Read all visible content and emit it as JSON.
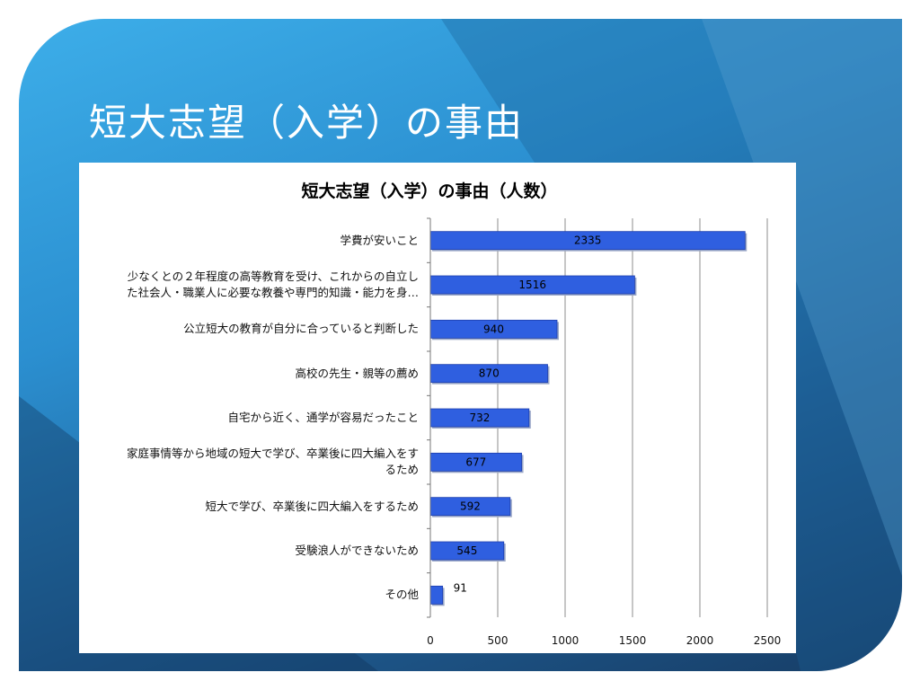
{
  "slide": {
    "title": "短大志望（入学）の事由"
  },
  "chart_data": {
    "type": "bar",
    "orientation": "horizontal",
    "title": "短大志望（入学）の事由（人数）",
    "categories": [
      "学費が安いこと",
      "少なくとの２年程度の高等教育を受け、これからの自立した社会人・職業人に必要な教養や専門的知識・能力を身…",
      "公立短大の教育が自分に合っていると判断した",
      "高校の先生・親等の薦め",
      "自宅から近く、通学が容易だったこと",
      "家庭事情等から地域の短大で学び、卒業後に四大編入をするため",
      "短大で学び、卒業後に四大編入をするため",
      "受験浪人ができないため",
      "その他"
    ],
    "category_lines": [
      [
        "学費が安いこと"
      ],
      [
        "少なくとの２年程度の高等教育を受け、これからの自立し",
        "た社会人・職業人に必要な教養や専門的知識・能力を身…"
      ],
      [
        "公立短大の教育が自分に合っていると判断した"
      ],
      [
        "高校の先生・親等の薦め"
      ],
      [
        "自宅から近く、通学が容易だったこと"
      ],
      [
        "家庭事情等から地域の短大で学び、卒業後に四大編入をす",
        "るため"
      ],
      [
        "短大で学び、卒業後に四大編入をするため"
      ],
      [
        "受験浪人ができないため"
      ],
      [
        "その他"
      ]
    ],
    "values": [
      2335,
      1516,
      940,
      870,
      732,
      677,
      592,
      545,
      91
    ],
    "xlim": [
      0,
      2500
    ],
    "xticks": [
      0,
      500,
      1000,
      1500,
      2000,
      2500
    ],
    "grid": true,
    "legend": "none",
    "bar_color": "#2f5fe0"
  }
}
